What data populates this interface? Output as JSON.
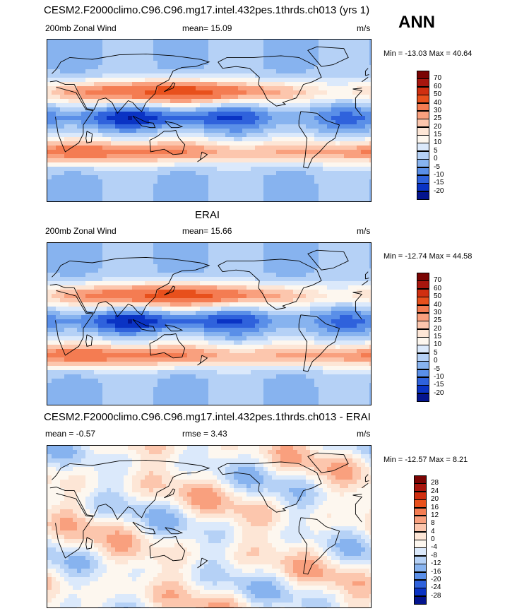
{
  "header": {
    "title": "CESM2.F2000climo.C96.C96.mg17.intel.432pes.1thrds.ch013 (yrs 1)",
    "season": "ANN"
  },
  "panels": [
    {
      "id": "model",
      "left_label": "200mb Zonal Wind",
      "center_label": "mean=  15.09",
      "right_label": "m/s",
      "minmax": "Min = -13.03 Max =  40.64",
      "colorbar_levels": [
        "70",
        "60",
        "50",
        "40",
        "30",
        "25",
        "20",
        "15",
        "10",
        "5",
        "0",
        "-5",
        "-10",
        "-15",
        "-20"
      ],
      "colors": [
        "#7a0403",
        "#a8160e",
        "#d02f10",
        "#e8501c",
        "#f47c52",
        "#f9a07e",
        "#fcc6ad",
        "#fde6d6",
        "#fdf7ef",
        "#dbe9fb",
        "#b5d1f6",
        "#87b3ef",
        "#5a8fe8",
        "#2f62dc",
        "#0a33c4",
        "#04148e"
      ]
    },
    {
      "id": "obs",
      "title": "ERAI",
      "left_label": "200mb Zonal Wind",
      "center_label": "mean=  15.66",
      "right_label": "m/s",
      "minmax": "Min = -12.74 Max =  44.58",
      "colorbar_levels": [
        "70",
        "60",
        "50",
        "40",
        "30",
        "25",
        "20",
        "15",
        "10",
        "5",
        "0",
        "-5",
        "-10",
        "-15",
        "-20"
      ],
      "colors": [
        "#7a0403",
        "#a8160e",
        "#d02f10",
        "#e8501c",
        "#f47c52",
        "#f9a07e",
        "#fcc6ad",
        "#fde6d6",
        "#fdf7ef",
        "#dbe9fb",
        "#b5d1f6",
        "#87b3ef",
        "#5a8fe8",
        "#2f62dc",
        "#0a33c4",
        "#04148e"
      ]
    },
    {
      "id": "diff",
      "title": "CESM2.F2000climo.C96.C96.mg17.intel.432pes.1thrds.ch013 - ERAI",
      "left_label": "mean =  -0.57",
      "center_label": "rmse =   3.43",
      "right_label": "m/s",
      "minmax": "Min = -12.57 Max =   8.21",
      "colorbar_levels": [
        "28",
        "24",
        "20",
        "16",
        "12",
        "8",
        "4",
        "0",
        "-4",
        "-8",
        "-12",
        "-16",
        "-20",
        "-24",
        "-28"
      ],
      "colors": [
        "#7a0403",
        "#a8160e",
        "#d02f10",
        "#e8501c",
        "#f47c52",
        "#f9a07e",
        "#fcc6ad",
        "#fde6d6",
        "#fdf7ef",
        "#dbe9fb",
        "#b5d1f6",
        "#87b3ef",
        "#5a8fe8",
        "#2f62dc",
        "#0a33c4",
        "#04148e"
      ]
    }
  ]
}
